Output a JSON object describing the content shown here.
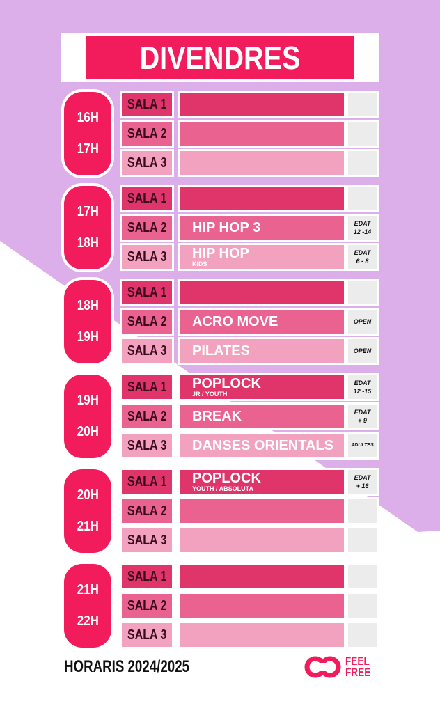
{
  "title": "DIVENDRES",
  "colors": {
    "lilac": "#dcaeea",
    "accent": "#f21b5c",
    "sala1": "#e0356a",
    "sala2": "#ea6290",
    "sala3": "#f2a2bf",
    "tag_bg": "#ececec"
  },
  "blocks": [
    {
      "start": "16H",
      "end": "17H",
      "rows": [
        {
          "sala": "SALA 1",
          "class": "",
          "sub": "",
          "tag1": "",
          "tag2": ""
        },
        {
          "sala": "SALA 2",
          "class": "",
          "sub": "",
          "tag1": "",
          "tag2": ""
        },
        {
          "sala": "SALA 3",
          "class": "",
          "sub": "",
          "tag1": "",
          "tag2": ""
        }
      ]
    },
    {
      "start": "17H",
      "end": "18H",
      "rows": [
        {
          "sala": "SALA 1",
          "class": "",
          "sub": "",
          "tag1": "",
          "tag2": ""
        },
        {
          "sala": "SALA 2",
          "class": "HIP HOP 3",
          "sub": "",
          "tag1": "EDAT",
          "tag2": "12 -14"
        },
        {
          "sala": "SALA 3",
          "class": "HIP HOP",
          "sub": "KIDS",
          "tag1": "EDAT",
          "tag2": "6 - 8"
        }
      ]
    },
    {
      "start": "18H",
      "end": "19H",
      "rows": [
        {
          "sala": "SALA 1",
          "class": "",
          "sub": "",
          "tag1": "",
          "tag2": ""
        },
        {
          "sala": "SALA 2",
          "class": "ACRO MOVE",
          "sub": "",
          "tag1": "OPEN",
          "tag2": ""
        },
        {
          "sala": "SALA 3",
          "class": "PILATES",
          "sub": "",
          "tag1": "OPEN",
          "tag2": ""
        }
      ]
    },
    {
      "start": "19H",
      "end": "20H",
      "rows": [
        {
          "sala": "SALA 1",
          "class": "POPLOCK",
          "sub": "JR / YOUTH",
          "tag1": "EDAT",
          "tag2": "12 -15"
        },
        {
          "sala": "SALA 2",
          "class": "BREAK",
          "sub": "",
          "tag1": "EDAT",
          "tag2": "+ 9"
        },
        {
          "sala": "SALA 3",
          "class": "DANSES ORIENTALS",
          "sub": "",
          "tag1": "ADULTES",
          "tag2": ""
        }
      ]
    },
    {
      "start": "20H",
      "end": "21H",
      "rows": [
        {
          "sala": "SALA 1",
          "class": "POPLOCK",
          "sub": "YOUTH / ABSOLUTA",
          "tag1": "EDAT",
          "tag2": "+ 16"
        },
        {
          "sala": "SALA 2",
          "class": "",
          "sub": "",
          "tag1": "",
          "tag2": ""
        },
        {
          "sala": "SALA 3",
          "class": "",
          "sub": "",
          "tag1": "",
          "tag2": ""
        }
      ]
    },
    {
      "start": "21H",
      "end": "22H",
      "rows": [
        {
          "sala": "SALA 1",
          "class": "",
          "sub": "",
          "tag1": "",
          "tag2": ""
        },
        {
          "sala": "SALA 2",
          "class": "",
          "sub": "",
          "tag1": "",
          "tag2": ""
        },
        {
          "sala": "SALA 3",
          "class": "",
          "sub": "",
          "tag1": "",
          "tag2": ""
        }
      ]
    }
  ],
  "footer": {
    "text": "HORARIS 2024/2025",
    "logo_line1": "FEEL",
    "logo_line2": "FREE",
    "logo_icon": "feel-free-loop-icon"
  }
}
